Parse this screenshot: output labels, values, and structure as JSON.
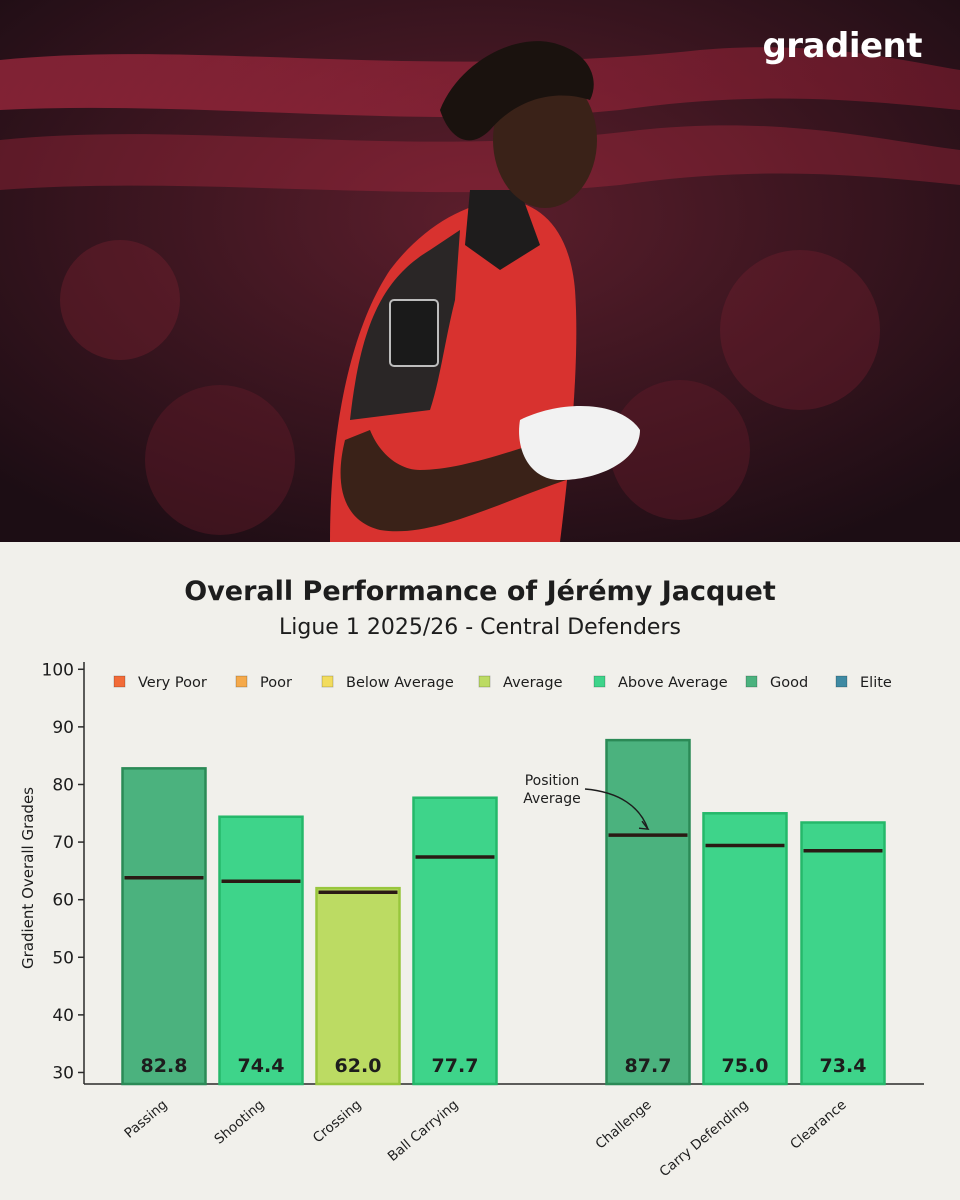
{
  "brand": {
    "logo_text": "gradient"
  },
  "chart_data": {
    "type": "bar",
    "title": "Overall Performance of Jérémy Jacquet",
    "subtitle": "Ligue 1 2025/26 - Central Defenders",
    "ylabel": "Gradient Overall Grades",
    "xlabel": "",
    "ylim": [
      28,
      103
    ],
    "yticks": [
      30,
      40,
      50,
      60,
      70,
      80,
      90,
      100
    ],
    "grid": false,
    "legend_position": "top",
    "legend": [
      {
        "label": "Very Poor",
        "color": "#f26b38"
      },
      {
        "label": "Poor",
        "color": "#f5a94a"
      },
      {
        "label": "Below Average",
        "color": "#f2dc5d"
      },
      {
        "label": "Average",
        "color": "#bcdb63"
      },
      {
        "label": "Above Average",
        "color": "#3ed48a"
      },
      {
        "label": "Good",
        "color": "#4bb27e"
      },
      {
        "label": "Elite",
        "color": "#3f8aa3"
      }
    ],
    "categories": [
      "Passing",
      "Shooting",
      "Crossing",
      "Ball Carrying",
      "Challenge",
      "Carry Defending",
      "Clearance"
    ],
    "values": [
      82.8,
      74.4,
      62.0,
      77.7,
      87.7,
      75.0,
      73.4
    ],
    "value_labels": [
      "82.8",
      "74.4",
      "62.0",
      "77.7",
      "87.7",
      "75.0",
      "73.4"
    ],
    "position_average": [
      63.8,
      63.2,
      61.3,
      67.4,
      71.2,
      69.4,
      68.5
    ],
    "grades": [
      "Good",
      "Above Average",
      "Average",
      "Above Average",
      "Good",
      "Above Average",
      "Above Average"
    ],
    "groups": [
      [
        "Passing",
        "Shooting",
        "Crossing",
        "Ball Carrying"
      ],
      [
        "Challenge",
        "Carry Defending",
        "Clearance"
      ]
    ],
    "annotation": {
      "lines": [
        "Position",
        "Average"
      ],
      "target_category": "Challenge"
    }
  }
}
